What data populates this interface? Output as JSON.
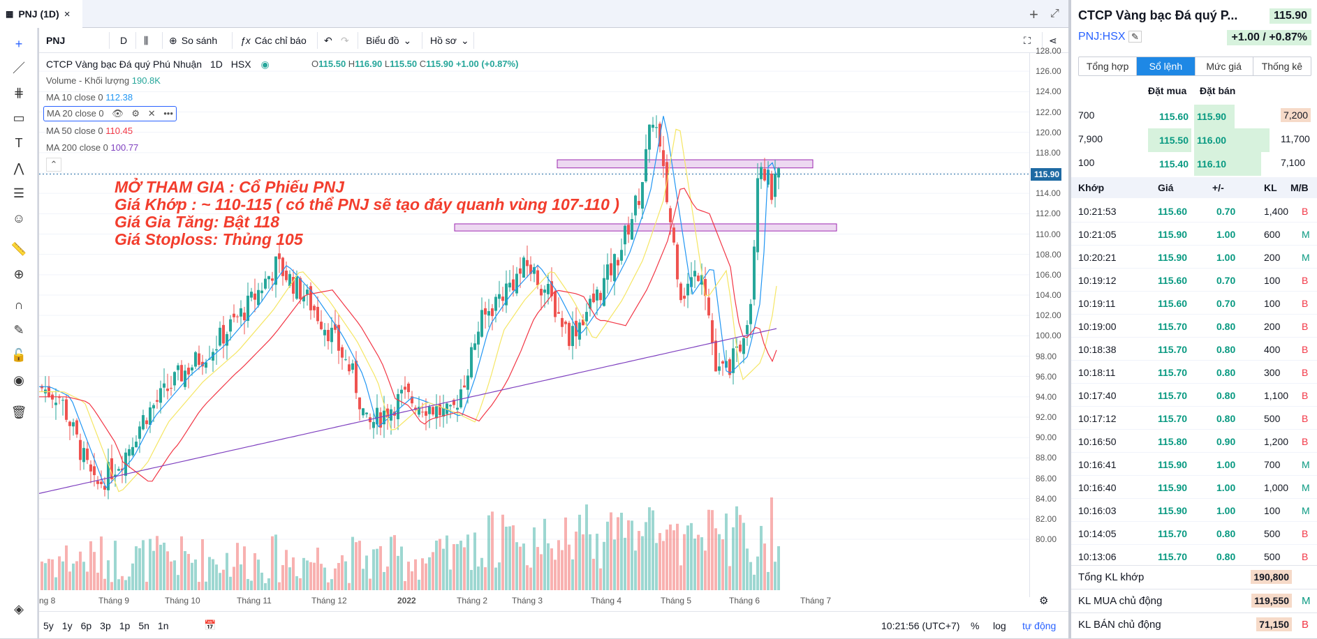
{
  "tab": {
    "title": "PNJ (1D)",
    "close": "×"
  },
  "toolbar": {
    "symbol": "PNJ",
    "interval": "D",
    "compare": "So sánh",
    "indicators": "Các chỉ báo",
    "chart_type": "Biểu đồ",
    "profile": "Hồ sơ"
  },
  "legend": {
    "title": "CTCP Vàng bạc Đá quý Phú Nhuận",
    "interval": "1D",
    "exchange": "HSX",
    "ohlc": {
      "o_label": "O",
      "o": "115.50",
      "h_label": "H",
      "h": "116.90",
      "l_label": "L",
      "l": "115.50",
      "c_label": "C",
      "c": "115.90",
      "change": "+1.00 (+0.87%)"
    },
    "volume_label": "Volume - Khối lượng",
    "volume_value": "190.8K",
    "ma10_label": "MA 10 close 0",
    "ma10_value": "112.38",
    "ma20_label": "MA 20 close 0",
    "ma50_label": "MA 50 close 0",
    "ma50_value": "110.45",
    "ma200_label": "MA 200 close 0",
    "ma200_value": "100.77"
  },
  "annotation": {
    "line1": "MỞ THAM GIA : Cổ Phiếu PNJ",
    "line2": "Giá Khớp : ~ 110-115 ( có thể PNJ sẽ tạo đáy quanh vùng 107-110 )",
    "line3": "Giá Gia Tăng: Bật 118",
    "line4": "Giá Stoploss: Thủng 105"
  },
  "chart_data": {
    "type": "candlestick",
    "symbol": "PNJ",
    "interval": "1D",
    "ylim": [
      80,
      128
    ],
    "yticks": [
      "128.00",
      "126.00",
      "124.00",
      "122.00",
      "120.00",
      "118.00",
      "116.00",
      "114.00",
      "112.00",
      "110.00",
      "108.00",
      "106.00",
      "104.00",
      "102.00",
      "100.00",
      "98.00",
      "96.00",
      "94.00",
      "92.00",
      "90.00",
      "88.00",
      "86.00",
      "84.00",
      "82.00",
      "80.00"
    ],
    "xticks": [
      "ng 8",
      "Tháng 9",
      "Tháng 10",
      "Tháng 11",
      "Tháng 12",
      "2022",
      "Tháng 2",
      "Tháng 3",
      "Tháng 4",
      "Tháng 5",
      "Tháng 6",
      "Tháng 7"
    ],
    "last_price": "115.90",
    "zones": [
      {
        "from": 116.5,
        "to": 117.3
      },
      {
        "from": 110.3,
        "to": 111.0
      }
    ],
    "colors": {
      "up": "#26a69a",
      "down": "#ef5350",
      "ma10": "#2196f3",
      "ma20": "#f5e663",
      "ma50": "#f23645",
      "ma200": "#7e3fbf",
      "zone": "#e1bee7",
      "zone_border": "#9c27b0"
    }
  },
  "axis": {
    "time": "10:21:56 (UTC+7)",
    "pct": "%",
    "log": "log",
    "auto": "tự động"
  },
  "ranges": [
    "5y",
    "1y",
    "6p",
    "3p",
    "1p",
    "5n",
    "1n"
  ],
  "right": {
    "title": "CTCP Vàng bạc Đá quý P...",
    "price": "115.90",
    "symbol": "PNJ:HSX",
    "change": "+1.00 / +0.87%",
    "tabs": [
      "Tổng hợp",
      "Sổ lệnh",
      "Mức giá",
      "Thống kê"
    ],
    "ob_head": {
      "bid": "Đặt mua",
      "ask": "Đặt bán"
    },
    "orderbook": [
      {
        "bidvol": "700",
        "bid": "115.60",
        "ask": "115.90",
        "askvol": "7,200"
      },
      {
        "bidvol": "7,900",
        "bid": "115.50",
        "ask": "116.00",
        "askvol": "11,700"
      },
      {
        "bidvol": "100",
        "bid": "115.40",
        "ask": "116.10",
        "askvol": "7,100"
      }
    ],
    "trade_head": {
      "time": "Khớp",
      "price": "Giá",
      "chg": "+/-",
      "vol": "KL",
      "side": "M/B"
    },
    "trades": [
      {
        "t": "10:21:53",
        "p": "115.60",
        "c": "0.70",
        "v": "1,400",
        "s": "B"
      },
      {
        "t": "10:21:05",
        "p": "115.90",
        "c": "1.00",
        "v": "600",
        "s": "M"
      },
      {
        "t": "10:20:21",
        "p": "115.90",
        "c": "1.00",
        "v": "200",
        "s": "M"
      },
      {
        "t": "10:19:12",
        "p": "115.60",
        "c": "0.70",
        "v": "100",
        "s": "B"
      },
      {
        "t": "10:19:11",
        "p": "115.60",
        "c": "0.70",
        "v": "100",
        "s": "B"
      },
      {
        "t": "10:19:00",
        "p": "115.70",
        "c": "0.80",
        "v": "200",
        "s": "B"
      },
      {
        "t": "10:18:38",
        "p": "115.70",
        "c": "0.80",
        "v": "400",
        "s": "B"
      },
      {
        "t": "10:18:11",
        "p": "115.70",
        "c": "0.80",
        "v": "300",
        "s": "B"
      },
      {
        "t": "10:17:40",
        "p": "115.70",
        "c": "0.80",
        "v": "1,100",
        "s": "B"
      },
      {
        "t": "10:17:12",
        "p": "115.70",
        "c": "0.80",
        "v": "500",
        "s": "B"
      },
      {
        "t": "10:16:50",
        "p": "115.80",
        "c": "0.90",
        "v": "1,200",
        "s": "B"
      },
      {
        "t": "10:16:41",
        "p": "115.90",
        "c": "1.00",
        "v": "700",
        "s": "M"
      },
      {
        "t": "10:16:40",
        "p": "115.90",
        "c": "1.00",
        "v": "1,000",
        "s": "M"
      },
      {
        "t": "10:16:03",
        "p": "115.90",
        "c": "1.00",
        "v": "100",
        "s": "M"
      },
      {
        "t": "10:14:05",
        "p": "115.70",
        "c": "0.80",
        "v": "500",
        "s": "B"
      },
      {
        "t": "10:13:06",
        "p": "115.70",
        "c": "0.80",
        "v": "500",
        "s": "B"
      }
    ],
    "summary": [
      {
        "label": "Tổng KL khớp",
        "value": "190,800",
        "side": ""
      },
      {
        "label": "KL MUA chủ động",
        "value": "119,550",
        "side": "M"
      },
      {
        "label": "KL BÁN chủ động",
        "value": "71,150",
        "side": "B"
      }
    ]
  }
}
